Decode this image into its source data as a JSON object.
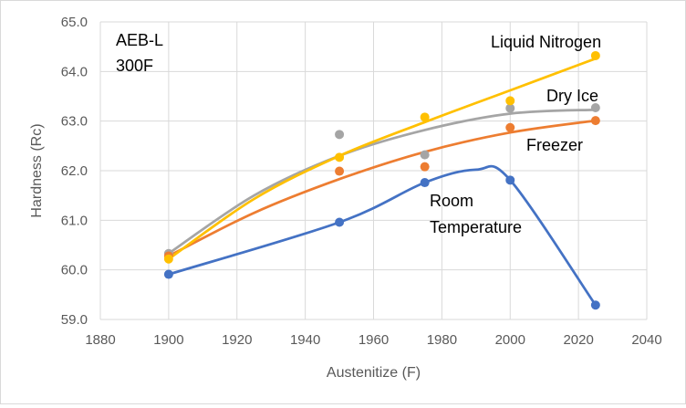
{
  "chart_data": {
    "type": "scatter",
    "title": "",
    "xlabel": "Austenitize (F)",
    "ylabel": "Hardness (Rc)",
    "xlim": [
      1880,
      2040
    ],
    "ylim": [
      59.0,
      65.0
    ],
    "xticks": [
      1880,
      1900,
      1920,
      1940,
      1960,
      1980,
      2000,
      2020,
      2040
    ],
    "xtick_labels": [
      "1880",
      "1900",
      "1920",
      "1940",
      "1960",
      "1980",
      "2000",
      "2020",
      "2040"
    ],
    "yticks": [
      59,
      60,
      61,
      62,
      63,
      64,
      65
    ],
    "ytick_labels": [
      "59.0",
      "60.0",
      "61.0",
      "62.0",
      "63.0",
      "64.0",
      "65.0"
    ],
    "grid": true,
    "legend": "none",
    "annotation_lines": [
      "AEB-L",
      "300F"
    ],
    "series": [
      {
        "name": "Liquid Nitrogen",
        "label_lines": [
          "Liquid Nitrogen"
        ],
        "color": "#FFC000",
        "x": [
          1900,
          1950,
          1975,
          2000,
          2025
        ],
        "y": [
          60.22,
          62.27,
          63.08,
          63.41,
          64.32
        ],
        "trend": [
          [
            1900,
            60.22
          ],
          [
            1925,
            61.43
          ],
          [
            1950,
            62.3
          ],
          [
            1975,
            62.98
          ],
          [
            2000,
            63.62
          ],
          [
            2025,
            64.26
          ]
        ]
      },
      {
        "name": "Dry Ice",
        "label_lines": [
          "Dry Ice"
        ],
        "color": "#A5A5A5",
        "x": [
          1900,
          1950,
          1975,
          2000,
          2025
        ],
        "y": [
          60.33,
          62.73,
          62.32,
          63.26,
          63.27
        ],
        "trend": [
          [
            1900,
            60.33
          ],
          [
            1925,
            61.5
          ],
          [
            1950,
            62.3
          ],
          [
            1975,
            62.82
          ],
          [
            2000,
            63.15
          ],
          [
            2025,
            63.23
          ]
        ]
      },
      {
        "name": "Freezer",
        "label_lines": [
          "Freezer"
        ],
        "color": "#ED7D31",
        "x": [
          1900,
          1950,
          1975,
          2000,
          2025
        ],
        "y": [
          60.28,
          61.99,
          62.08,
          62.87,
          63.01
        ],
        "trend": [
          [
            1900,
            60.28
          ],
          [
            1925,
            61.15
          ],
          [
            1950,
            61.83
          ],
          [
            1975,
            62.38
          ],
          [
            2000,
            62.77
          ],
          [
            2025,
            63.01
          ]
        ]
      },
      {
        "name": "Room Temperature",
        "label_lines": [
          "Room",
          "Temperature"
        ],
        "color": "#4472C4",
        "x": [
          1900,
          1950,
          1975,
          2000,
          2025
        ],
        "y": [
          59.91,
          60.96,
          61.76,
          61.81,
          59.29
        ],
        "trend": [
          [
            1900,
            59.91
          ],
          [
            1950,
            60.96
          ],
          [
            1975,
            61.76
          ],
          [
            1990,
            62.02
          ],
          [
            2000,
            61.81
          ],
          [
            2025,
            59.29
          ]
        ]
      }
    ]
  }
}
